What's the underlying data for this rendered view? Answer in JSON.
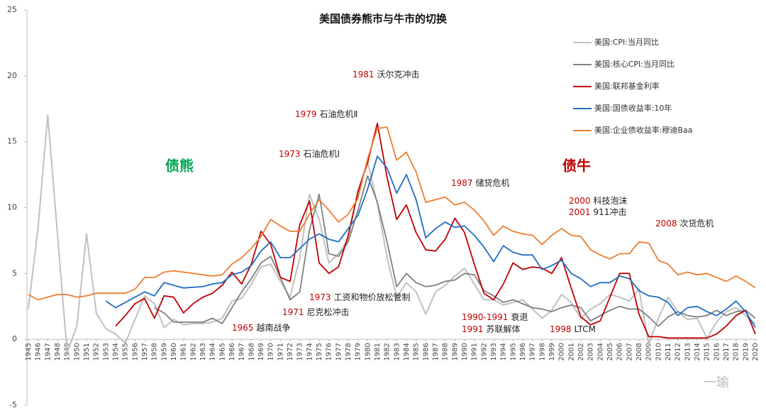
{
  "chart_data": {
    "type": "line",
    "title": "美国债券熊市与牛市的切换",
    "regimes": [
      {
        "label": "债熊",
        "color": "#00a651"
      },
      {
        "label": "债牛",
        "color": "#c00000"
      }
    ],
    "watermark": "一瑜",
    "annotations": [
      {
        "year": "1981",
        "text": "沃尔克冲击"
      },
      {
        "year": "1979",
        "text": "石油危机Ⅱ"
      },
      {
        "year": "1973",
        "text": "石油危机Ⅰ"
      },
      {
        "year": "1987",
        "text": "储贷危机"
      },
      {
        "year": "2000",
        "text": "科技泡沫"
      },
      {
        "year": "2001",
        "text": "911冲击"
      },
      {
        "year": "2008",
        "text": "次贷危机"
      },
      {
        "year": "1973",
        "text": "工资和物价放松管制"
      },
      {
        "year": "1971",
        "text": "尼克松冲击"
      },
      {
        "year": "1965",
        "text": "越南战争"
      },
      {
        "year": "1990-1991",
        "text": "衰退"
      },
      {
        "year": "1991",
        "text": "苏联解体"
      },
      {
        "year": "1998",
        "text": "LTCM"
      }
    ],
    "x": [
      1945,
      1946,
      1947,
      1948,
      1949,
      1950,
      1951,
      1952,
      1953,
      1954,
      1955,
      1956,
      1957,
      1958,
      1959,
      1960,
      1961,
      1962,
      1963,
      1964,
      1965,
      1966,
      1967,
      1968,
      1969,
      1970,
      1971,
      1972,
      1973,
      1974,
      1975,
      1976,
      1977,
      1978,
      1979,
      1980,
      1981,
      1982,
      1983,
      1984,
      1985,
      1986,
      1987,
      1988,
      1989,
      1990,
      1991,
      1992,
      1993,
      1994,
      1995,
      1996,
      1997,
      1998,
      1999,
      2000,
      2001,
      2002,
      2003,
      2004,
      2005,
      2006,
      2007,
      2008,
      2009,
      2010,
      2011,
      2012,
      2013,
      2014,
      2015,
      2016,
      2017,
      2018,
      2019,
      2020
    ],
    "xlim": [
      1945,
      2020
    ],
    "xticks": [
      1945,
      1946,
      1947,
      1948,
      1949,
      1950,
      1951,
      1952,
      1953,
      1954,
      1955,
      1956,
      1957,
      1958,
      1959,
      1960,
      1961,
      1962,
      1963,
      1964,
      1965,
      1966,
      1967,
      1968,
      1969,
      1970,
      1971,
      1972,
      1973,
      1974,
      1975,
      1976,
      1977,
      1978,
      1979,
      1980,
      1981,
      1982,
      1983,
      1984,
      1985,
      1986,
      1987,
      1988,
      1989,
      1990,
      1991,
      1992,
      1993,
      1994,
      1995,
      1996,
      1997,
      1998,
      1999,
      2000,
      2001,
      2002,
      2003,
      2004,
      2005,
      2006,
      2007,
      2008,
      2009,
      2010,
      2011,
      2012,
      2013,
      2014,
      2015,
      2016,
      2017,
      2018,
      2019,
      2020
    ],
    "ylim": [
      -5,
      25
    ],
    "yticks": [
      -5,
      0,
      5,
      10,
      15,
      20,
      25
    ],
    "legend": "top-right",
    "series": [
      {
        "name": "美国:CPI:当月同比",
        "color": "#c0c0c0",
        "values": [
          2.3,
          8.5,
          17,
          8,
          -1,
          1,
          8,
          2,
          0.8,
          0.4,
          -0.3,
          1.5,
          3.3,
          2.7,
          0.9,
          1.5,
          1.1,
          1.2,
          1.2,
          1.3,
          1.6,
          2.9,
          3.1,
          4.2,
          5.5,
          5.7,
          4.4,
          3.2,
          6.2,
          11,
          9.1,
          5.8,
          6.5,
          7.6,
          11.3,
          13.5,
          10.3,
          6.2,
          3.2,
          4.3,
          3.6,
          1.9,
          3.6,
          4.1,
          4.8,
          5.4,
          4.2,
          3.0,
          3.0,
          2.6,
          2.8,
          3.0,
          2.3,
          1.6,
          2.2,
          3.4,
          2.8,
          1.6,
          2.3,
          2.7,
          3.4,
          3.2,
          2.9,
          3.8,
          -0.4,
          1.6,
          3.2,
          2.1,
          1.5,
          1.6,
          0.1,
          1.3,
          2.1,
          2.4,
          1.8,
          1.2
        ]
      },
      {
        "name": "美国:核心CPI:当月同比",
        "color": "#808080",
        "values": [
          null,
          null,
          null,
          null,
          null,
          null,
          null,
          null,
          null,
          null,
          null,
          null,
          null,
          2.4,
          2.0,
          1.3,
          1.3,
          1.3,
          1.3,
          1.6,
          1.2,
          2.4,
          3.6,
          4.6,
          5.8,
          6.3,
          4.7,
          3.0,
          3.6,
          8.3,
          11.0,
          6.5,
          6.3,
          7.4,
          9.8,
          12.4,
          10.4,
          7.4,
          4.0,
          5.0,
          4.3,
          4.0,
          4.1,
          4.4,
          4.5,
          5.0,
          4.9,
          3.7,
          3.3,
          2.8,
          3.0,
          2.7,
          2.4,
          2.3,
          2.1,
          2.4,
          2.6,
          2.4,
          1.4,
          1.8,
          2.2,
          2.5,
          2.3,
          2.3,
          1.7,
          1.0,
          1.7,
          2.1,
          1.8,
          1.7,
          1.8,
          2.2,
          1.8,
          2.1,
          2.2,
          1.6
        ]
      },
      {
        "name": "美国:联邦基金利率",
        "color": "#c00000",
        "values": [
          null,
          null,
          null,
          null,
          null,
          null,
          null,
          null,
          null,
          1.0,
          1.8,
          2.7,
          3.1,
          1.6,
          3.3,
          3.2,
          2.0,
          2.7,
          3.2,
          3.5,
          4.1,
          5.1,
          4.2,
          5.7,
          8.2,
          7.2,
          4.7,
          4.4,
          8.7,
          10.5,
          5.8,
          5.0,
          5.5,
          7.9,
          11.2,
          13.4,
          16.4,
          12.3,
          9.1,
          10.2,
          8.1,
          6.8,
          6.7,
          7.6,
          9.2,
          8.1,
          5.7,
          3.5,
          3.0,
          4.2,
          5.8,
          5.3,
          5.5,
          5.4,
          5.0,
          6.2,
          3.9,
          1.7,
          1.1,
          1.4,
          3.2,
          5.0,
          5.0,
          1.9,
          0.2,
          0.2,
          0.1,
          0.1,
          0.1,
          0.1,
          0.1,
          0.4,
          1.0,
          1.8,
          2.2,
          0.4
        ]
      },
      {
        "name": "美国:国债收益率:10年",
        "color": "#1f6fc0",
        "values": [
          null,
          null,
          null,
          null,
          null,
          null,
          null,
          null,
          2.9,
          2.4,
          2.8,
          3.2,
          3.6,
          3.3,
          4.3,
          4.1,
          3.9,
          3.95,
          4.0,
          4.2,
          4.3,
          4.9,
          5.1,
          5.6,
          6.7,
          7.4,
          6.2,
          6.2,
          6.9,
          7.6,
          8.0,
          7.6,
          7.4,
          8.4,
          9.4,
          11.4,
          13.9,
          13.0,
          11.1,
          12.5,
          10.6,
          7.7,
          8.4,
          8.9,
          8.5,
          8.6,
          7.9,
          7.0,
          5.9,
          7.1,
          6.6,
          6.4,
          6.4,
          5.3,
          5.6,
          6.0,
          5.0,
          4.6,
          4.0,
          4.3,
          4.3,
          4.8,
          4.6,
          3.7,
          3.3,
          3.2,
          2.8,
          1.8,
          2.4,
          2.5,
          2.1,
          1.8,
          2.3,
          2.9,
          2.1,
          0.9
        ]
      },
      {
        "name": "美国:企业债收益率:穆迪Baa",
        "color": "#ed7d31",
        "values": [
          3.4,
          3.0,
          3.2,
          3.4,
          3.4,
          3.2,
          3.3,
          3.5,
          3.5,
          3.5,
          3.5,
          3.8,
          4.7,
          4.7,
          5.1,
          5.2,
          5.1,
          5.0,
          4.9,
          4.8,
          4.9,
          5.7,
          6.2,
          6.9,
          7.8,
          9.1,
          8.6,
          8.2,
          8.2,
          9.5,
          10.6,
          9.8,
          8.9,
          9.5,
          10.7,
          13.7,
          16.0,
          16.1,
          13.6,
          14.2,
          12.7,
          10.4,
          10.6,
          10.8,
          10.2,
          10.4,
          9.8,
          9.0,
          7.9,
          8.6,
          8.2,
          8.0,
          7.9,
          7.2,
          7.9,
          8.4,
          7.9,
          7.8,
          6.8,
          6.4,
          6.1,
          6.5,
          6.5,
          7.4,
          7.3,
          6.0,
          5.7,
          4.9,
          5.1,
          4.9,
          5.0,
          4.7,
          4.4,
          4.8,
          4.4,
          3.9
        ]
      }
    ]
  }
}
